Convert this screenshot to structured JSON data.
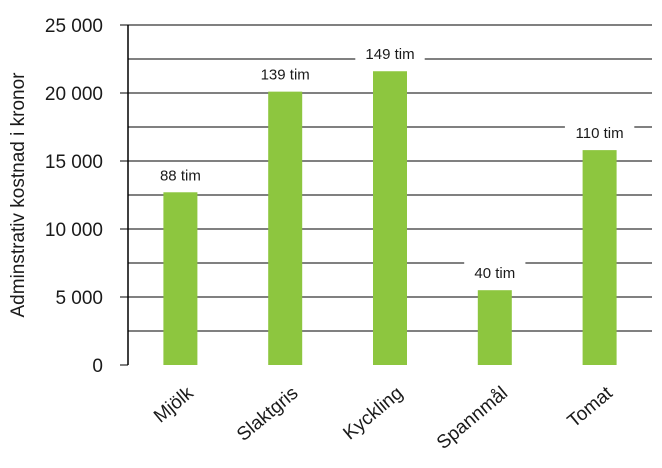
{
  "chart_data": {
    "type": "bar",
    "title": "",
    "xlabel": "",
    "ylabel": "Adminstrativ kostnad i kronor",
    "categories": [
      "Mjölk",
      "Slaktgris",
      "Kyckling",
      "Spannmål",
      "Tomat"
    ],
    "values": [
      12700,
      20100,
      21600,
      5500,
      15800
    ],
    "data_labels": [
      "88 tim",
      "139 tim",
      "149 tim",
      "40 tim",
      "110 tim"
    ],
    "ylim": [
      0,
      25000
    ],
    "yticks": [
      0,
      5000,
      10000,
      15000,
      20000,
      25000
    ],
    "ytick_labels": [
      "0",
      "5 000",
      "10 000",
      "15 000",
      "20 000",
      "25 000"
    ],
    "grid": true,
    "legend": "none",
    "bar_color": "#8dc63f",
    "gridline_color": "#000000"
  }
}
